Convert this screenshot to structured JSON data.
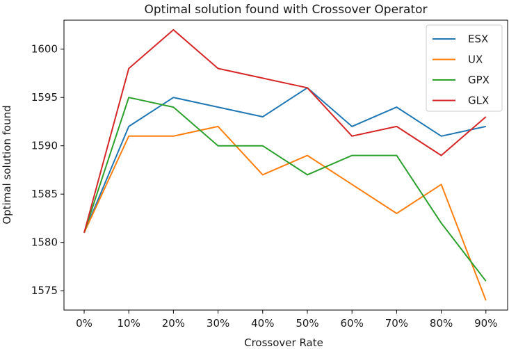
{
  "chart_data": {
    "type": "line",
    "title": "Optimal solution found with Crossover Operator",
    "xlabel": "Crossover Rate",
    "ylabel": "Optimal solution found",
    "categories": [
      "0%",
      "10%",
      "20%",
      "30%",
      "40%",
      "50%",
      "60%",
      "70%",
      "80%",
      "90%"
    ],
    "ylim": [
      1573,
      1603
    ],
    "yticks": [
      1575,
      1580,
      1585,
      1590,
      1595,
      1600
    ],
    "grid": false,
    "legend_position": "top-right",
    "series": [
      {
        "name": "ESX",
        "color": "#1f77b4",
        "values": [
          1581,
          1592,
          1595,
          1594,
          1593,
          1596,
          1592,
          1594,
          1591,
          1592
        ]
      },
      {
        "name": "UX",
        "color": "#ff7f0e",
        "values": [
          1581,
          1591,
          1591,
          1592,
          1587,
          1589,
          1586,
          1583,
          1586,
          1574
        ]
      },
      {
        "name": "GPX",
        "color": "#2ca02c",
        "values": [
          1581,
          1595,
          1594,
          1590,
          1590,
          1587,
          1589,
          1589,
          1582,
          1576
        ]
      },
      {
        "name": "GLX",
        "color": "#d62728",
        "values": [
          1581,
          1598,
          1602,
          1598,
          1597,
          1596,
          1591,
          1592,
          1589,
          1593
        ]
      }
    ]
  }
}
